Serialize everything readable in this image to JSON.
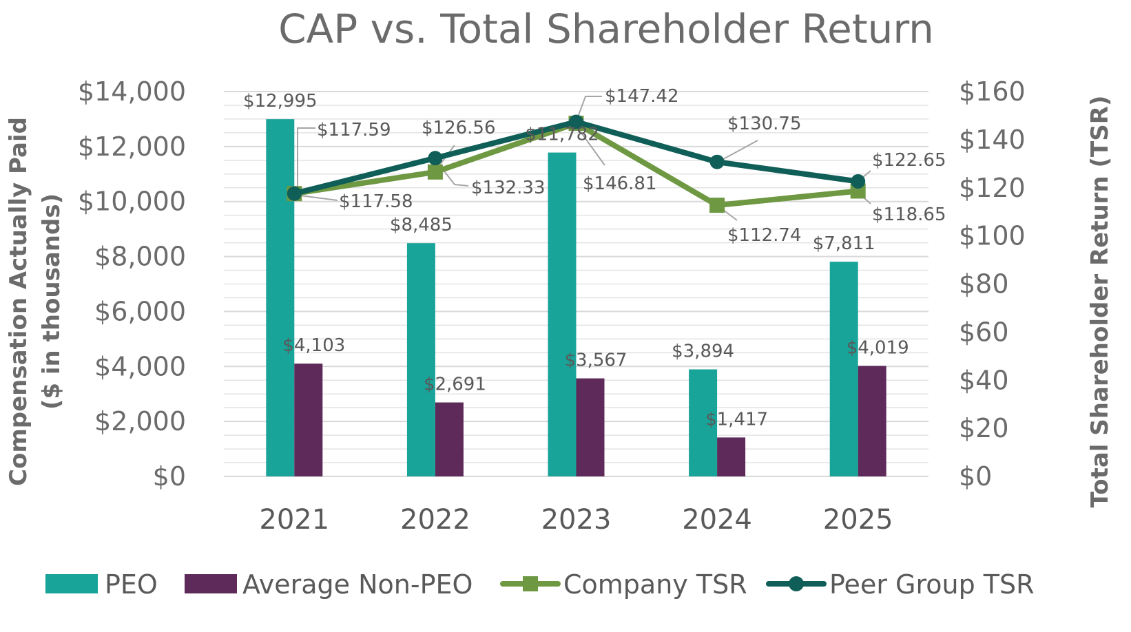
{
  "chart_data": {
    "type": "bar",
    "title": "CAP vs. Total Shareholder Return",
    "categories": [
      "2021",
      "2022",
      "2023",
      "2024",
      "2025"
    ],
    "y_left": {
      "label_line1": "Compensation Actually Paid",
      "label_line2": "($ in thousands)",
      "lim": [
        0,
        14000
      ],
      "ticks": [
        0,
        2000,
        4000,
        6000,
        8000,
        10000,
        12000,
        14000
      ],
      "tick_labels": [
        "$0",
        "$2,000",
        "$4,000",
        "$6,000",
        "$8,000",
        "$10,000",
        "$12,000",
        "$14,000"
      ]
    },
    "y_right": {
      "label": "Total Shareholder Return (TSR)",
      "lim": [
        0,
        160
      ],
      "ticks": [
        0,
        20,
        40,
        60,
        80,
        100,
        120,
        140,
        160
      ],
      "tick_labels": [
        "$0",
        "$20",
        "$40",
        "$60",
        "$80",
        "$100",
        "$120",
        "$140",
        "$160"
      ]
    },
    "series": [
      {
        "name": "PEO",
        "kind": "bar",
        "axis": "left",
        "color": "#19a49a",
        "values": [
          12995,
          8485,
          11782,
          3894,
          7811
        ],
        "labels": [
          "$12,995",
          "$8,485",
          "$11,782",
          "$3,894",
          "$7,811"
        ]
      },
      {
        "name": "Average Non-PEO",
        "kind": "bar",
        "axis": "left",
        "color": "#5e2a5a",
        "values": [
          4103,
          2691,
          3567,
          1417,
          4019
        ],
        "labels": [
          "$4,103",
          "$2,691",
          "$3,567",
          "$1,417",
          "$4,019"
        ]
      },
      {
        "name": "Company TSR",
        "kind": "line",
        "axis": "right",
        "color": "#6f9843",
        "marker": "square",
        "values": [
          117.58,
          126.56,
          146.81,
          112.74,
          118.65
        ],
        "labels": [
          "$117.58",
          "$126.56",
          "$146.81",
          "$112.74",
          "$118.65"
        ]
      },
      {
        "name": "Peer Group TSR",
        "kind": "line",
        "axis": "right",
        "color": "#0f5e57",
        "marker": "circle",
        "values": [
          117.59,
          132.33,
          147.42,
          130.75,
          122.65
        ],
        "labels": [
          "$117.59",
          "$132.33",
          "$147.42",
          "$130.75",
          "$122.65"
        ]
      }
    ],
    "grid": true,
    "legend_position": "bottom"
  }
}
